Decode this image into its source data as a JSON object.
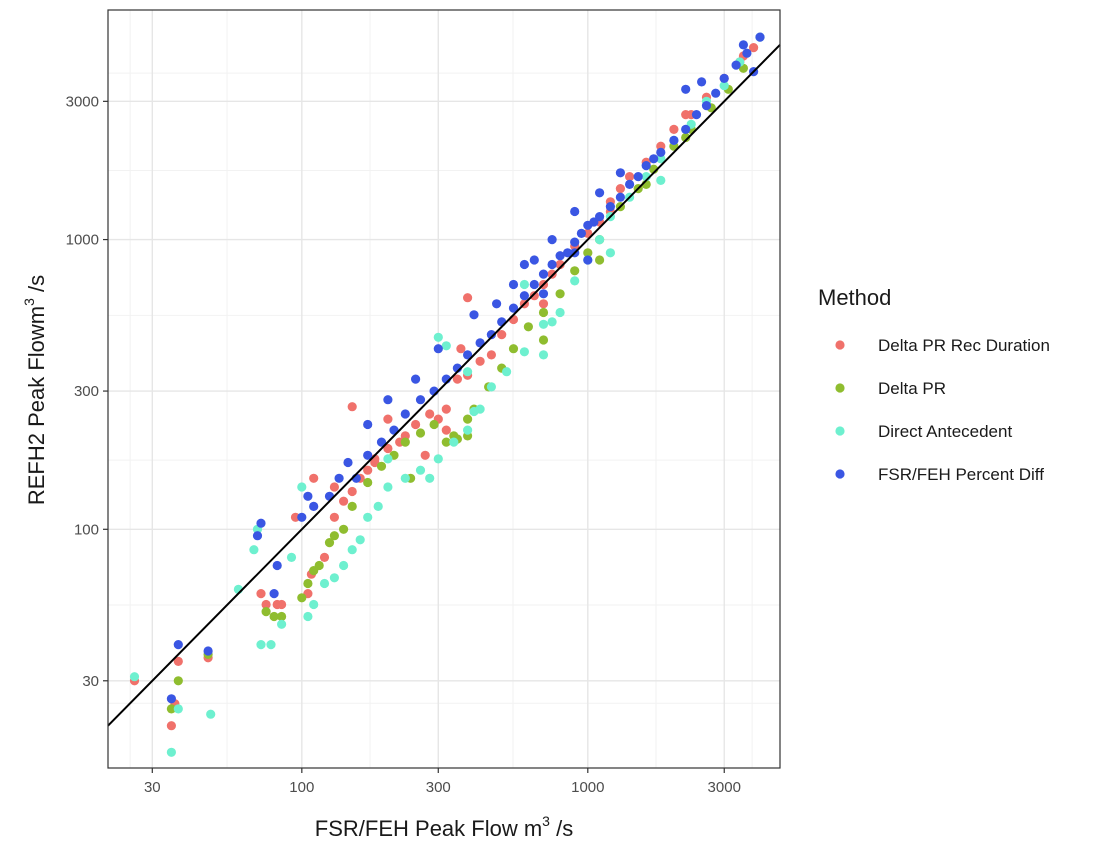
{
  "chart_data": {
    "type": "scatter",
    "title": "",
    "xlabel": "FSR/FEH Peak Flow m",
    "xlabel_sup": "3",
    "xlabel_suffix": " /s",
    "ylabel": "REFH2 Peak Flowm",
    "ylabel_sup": "3",
    "ylabel_suffix": " /s",
    "x_scale": "log10",
    "y_scale": "log10",
    "xlim": [
      21,
      4700
    ],
    "ylim": [
      15,
      6200
    ],
    "x_ticks": [
      30,
      100,
      300,
      1000,
      3000
    ],
    "x_tick_labels": [
      "30",
      "100",
      "300",
      "1000",
      "3000"
    ],
    "y_ticks": [
      30,
      100,
      300,
      1000,
      3000
    ],
    "y_tick_labels": [
      "30",
      "100",
      "300",
      "1000",
      "3000"
    ],
    "grid": true,
    "panel_border": true,
    "reference_line": {
      "type": "y=x",
      "color": "#000000"
    },
    "legend": {
      "title": "Method",
      "placement": "right",
      "entries": [
        {
          "label": "Delta PR Rec Duration",
          "color": "#F0716B"
        },
        {
          "label": "Delta PR",
          "color": "#8FBD2F"
        },
        {
          "label": "Direct Antecedent",
          "color": "#6EF0CF"
        },
        {
          "label": "FSR/FEH Percent Diff",
          "color": "#3A56E3"
        }
      ]
    },
    "series": [
      {
        "name": "Delta PR Rec Duration",
        "color": "#F0716B",
        "points": [
          [
            26,
            30
          ],
          [
            35,
            21
          ],
          [
            36,
            25
          ],
          [
            37,
            35
          ],
          [
            47,
            36
          ],
          [
            72,
            60
          ],
          [
            75,
            55
          ],
          [
            85,
            55
          ],
          [
            105,
            60
          ],
          [
            108,
            70
          ],
          [
            120,
            80
          ],
          [
            130,
            110
          ],
          [
            140,
            125
          ],
          [
            150,
            135
          ],
          [
            160,
            150
          ],
          [
            170,
            160
          ],
          [
            180,
            170
          ],
          [
            200,
            190
          ],
          [
            220,
            200
          ],
          [
            250,
            230
          ],
          [
            280,
            250
          ],
          [
            300,
            240
          ],
          [
            320,
            260
          ],
          [
            350,
            330
          ],
          [
            380,
            340
          ],
          [
            420,
            380
          ],
          [
            460,
            400
          ],
          [
            500,
            470
          ],
          [
            550,
            530
          ],
          [
            600,
            600
          ],
          [
            650,
            640
          ],
          [
            700,
            700
          ],
          [
            750,
            760
          ],
          [
            800,
            820
          ],
          [
            900,
            950
          ],
          [
            1000,
            1050
          ],
          [
            1100,
            1150
          ],
          [
            1200,
            1350
          ],
          [
            1300,
            1500
          ],
          [
            1400,
            1650
          ],
          [
            1600,
            1850
          ],
          [
            1800,
            2100
          ],
          [
            2000,
            2400
          ],
          [
            2300,
            2700
          ],
          [
            2600,
            3100
          ],
          [
            3000,
            3600
          ],
          [
            3400,
            4100
          ],
          [
            3500,
            4300
          ],
          [
            3800,
            4600
          ],
          [
            150,
            265
          ],
          [
            180,
            175
          ],
          [
            230,
            210
          ],
          [
            270,
            180
          ],
          [
            320,
            220
          ],
          [
            360,
            420
          ],
          [
            380,
            630
          ],
          [
            200,
            240
          ],
          [
            110,
            150
          ],
          [
            130,
            140
          ],
          [
            95,
            110
          ],
          [
            82,
            55
          ],
          [
            700,
            600
          ],
          [
            1200,
            1250
          ],
          [
            2200,
            2700
          ]
        ]
      },
      {
        "name": "Delta PR",
        "color": "#8FBD2F",
        "points": [
          [
            35,
            24
          ],
          [
            37,
            30
          ],
          [
            47,
            37
          ],
          [
            75,
            52
          ],
          [
            80,
            50
          ],
          [
            85,
            50
          ],
          [
            100,
            58
          ],
          [
            105,
            65
          ],
          [
            110,
            72
          ],
          [
            115,
            75
          ],
          [
            125,
            90
          ],
          [
            140,
            100
          ],
          [
            150,
            120
          ],
          [
            170,
            145
          ],
          [
            190,
            165
          ],
          [
            210,
            180
          ],
          [
            230,
            200
          ],
          [
            260,
            215
          ],
          [
            290,
            230
          ],
          [
            320,
            200
          ],
          [
            350,
            205
          ],
          [
            400,
            260
          ],
          [
            450,
            310
          ],
          [
            500,
            360
          ],
          [
            550,
            420
          ],
          [
            620,
            500
          ],
          [
            700,
            560
          ],
          [
            800,
            650
          ],
          [
            900,
            780
          ],
          [
            1000,
            900
          ],
          [
            1100,
            1000
          ],
          [
            1300,
            1300
          ],
          [
            1500,
            1500
          ],
          [
            1700,
            1750
          ],
          [
            2000,
            2100
          ],
          [
            2300,
            2400
          ],
          [
            2700,
            2850
          ],
          [
            3100,
            3300
          ],
          [
            3500,
            3900
          ],
          [
            380,
            240
          ],
          [
            700,
            450
          ],
          [
            1100,
            850
          ],
          [
            130,
            95
          ],
          [
            240,
            150
          ],
          [
            340,
            210
          ],
          [
            380,
            210
          ],
          [
            1600,
            1550
          ],
          [
            2200,
            2250
          ]
        ]
      },
      {
        "name": "Direct Antecedent",
        "color": "#6EF0CF",
        "points": [
          [
            26,
            31
          ],
          [
            35,
            17
          ],
          [
            37,
            24
          ],
          [
            48,
            23
          ],
          [
            60,
            62
          ],
          [
            72,
            40
          ],
          [
            78,
            40
          ],
          [
            85,
            47
          ],
          [
            92,
            80
          ],
          [
            105,
            50
          ],
          [
            110,
            55
          ],
          [
            120,
            65
          ],
          [
            130,
            68
          ],
          [
            140,
            75
          ],
          [
            150,
            85
          ],
          [
            160,
            92
          ],
          [
            170,
            110
          ],
          [
            185,
            120
          ],
          [
            200,
            140
          ],
          [
            230,
            150
          ],
          [
            260,
            160
          ],
          [
            300,
            175
          ],
          [
            340,
            200
          ],
          [
            380,
            220
          ],
          [
            420,
            260
          ],
          [
            460,
            310
          ],
          [
            520,
            350
          ],
          [
            600,
            410
          ],
          [
            700,
            510
          ],
          [
            800,
            560
          ],
          [
            900,
            720
          ],
          [
            1000,
            850
          ],
          [
            1100,
            1000
          ],
          [
            1200,
            1200
          ],
          [
            1400,
            1400
          ],
          [
            1600,
            1650
          ],
          [
            1800,
            1900
          ],
          [
            2000,
            2200
          ],
          [
            2300,
            2500
          ],
          [
            2600,
            3000
          ],
          [
            3000,
            3400
          ],
          [
            3400,
            4100
          ],
          [
            4000,
            5000
          ],
          [
            380,
            350
          ],
          [
            400,
            255
          ],
          [
            700,
            400
          ],
          [
            750,
            520
          ],
          [
            100,
            140
          ],
          [
            68,
            85
          ],
          [
            70,
            100
          ],
          [
            200,
            175
          ],
          [
            280,
            150
          ],
          [
            300,
            460
          ],
          [
            320,
            430
          ],
          [
            600,
            700
          ],
          [
            1200,
            900
          ],
          [
            1800,
            1600
          ]
        ]
      },
      {
        "name": "FSR/FEH Percent Diff",
        "color": "#3A56E3",
        "points": [
          [
            35,
            26
          ],
          [
            37,
            40
          ],
          [
            47,
            38
          ],
          [
            70,
            95
          ],
          [
            72,
            105
          ],
          [
            80,
            60
          ],
          [
            82,
            75
          ],
          [
            100,
            110
          ],
          [
            105,
            130
          ],
          [
            110,
            120
          ],
          [
            125,
            130
          ],
          [
            135,
            150
          ],
          [
            145,
            170
          ],
          [
            155,
            150
          ],
          [
            170,
            180
          ],
          [
            190,
            200
          ],
          [
            210,
            220
          ],
          [
            230,
            250
          ],
          [
            260,
            280
          ],
          [
            290,
            300
          ],
          [
            320,
            330
          ],
          [
            350,
            360
          ],
          [
            380,
            400
          ],
          [
            420,
            440
          ],
          [
            460,
            470
          ],
          [
            500,
            520
          ],
          [
            550,
            580
          ],
          [
            600,
            640
          ],
          [
            650,
            700
          ],
          [
            700,
            760
          ],
          [
            750,
            820
          ],
          [
            800,
            880
          ],
          [
            850,
            900
          ],
          [
            900,
            980
          ],
          [
            950,
            1050
          ],
          [
            1000,
            1120
          ],
          [
            1050,
            1150
          ],
          [
            1100,
            1200
          ],
          [
            1200,
            1300
          ],
          [
            1300,
            1400
          ],
          [
            1400,
            1550
          ],
          [
            1500,
            1650
          ],
          [
            1600,
            1800
          ],
          [
            1700,
            1900
          ],
          [
            1800,
            2000
          ],
          [
            2000,
            2200
          ],
          [
            2200,
            2400
          ],
          [
            2400,
            2700
          ],
          [
            2600,
            2900
          ],
          [
            2800,
            3200
          ],
          [
            3000,
            3600
          ],
          [
            3300,
            4000
          ],
          [
            3600,
            4400
          ],
          [
            4000,
            5000
          ],
          [
            2200,
            3300
          ],
          [
            2500,
            3500
          ],
          [
            400,
            550
          ],
          [
            550,
            700
          ],
          [
            650,
            850
          ],
          [
            750,
            1000
          ],
          [
            900,
            1250
          ],
          [
            1100,
            1450
          ],
          [
            1300,
            1700
          ],
          [
            480,
            600
          ],
          [
            600,
            820
          ],
          [
            300,
            420
          ],
          [
            250,
            330
          ],
          [
            200,
            280
          ],
          [
            170,
            230
          ],
          [
            700,
            650
          ],
          [
            900,
            900
          ],
          [
            1000,
            850
          ],
          [
            3800,
            3800
          ],
          [
            3500,
            4700
          ]
        ]
      }
    ]
  }
}
